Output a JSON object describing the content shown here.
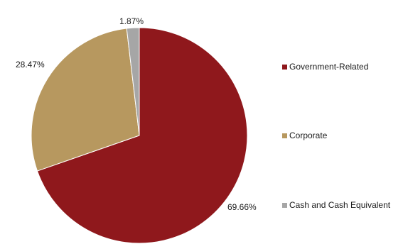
{
  "chart_data": {
    "type": "pie",
    "categories": [
      "Government-Related",
      "Corporate",
      "Cash and Cash Equivalent"
    ],
    "values": [
      69.66,
      28.47,
      1.87
    ],
    "labels": [
      "69.66%",
      "28.47%",
      "1.87%"
    ],
    "colors": [
      "#8f181c",
      "#b7985f",
      "#a6a6a6"
    ],
    "legend_position": "right",
    "start": "12 o'clock",
    "direction": "clockwise"
  }
}
